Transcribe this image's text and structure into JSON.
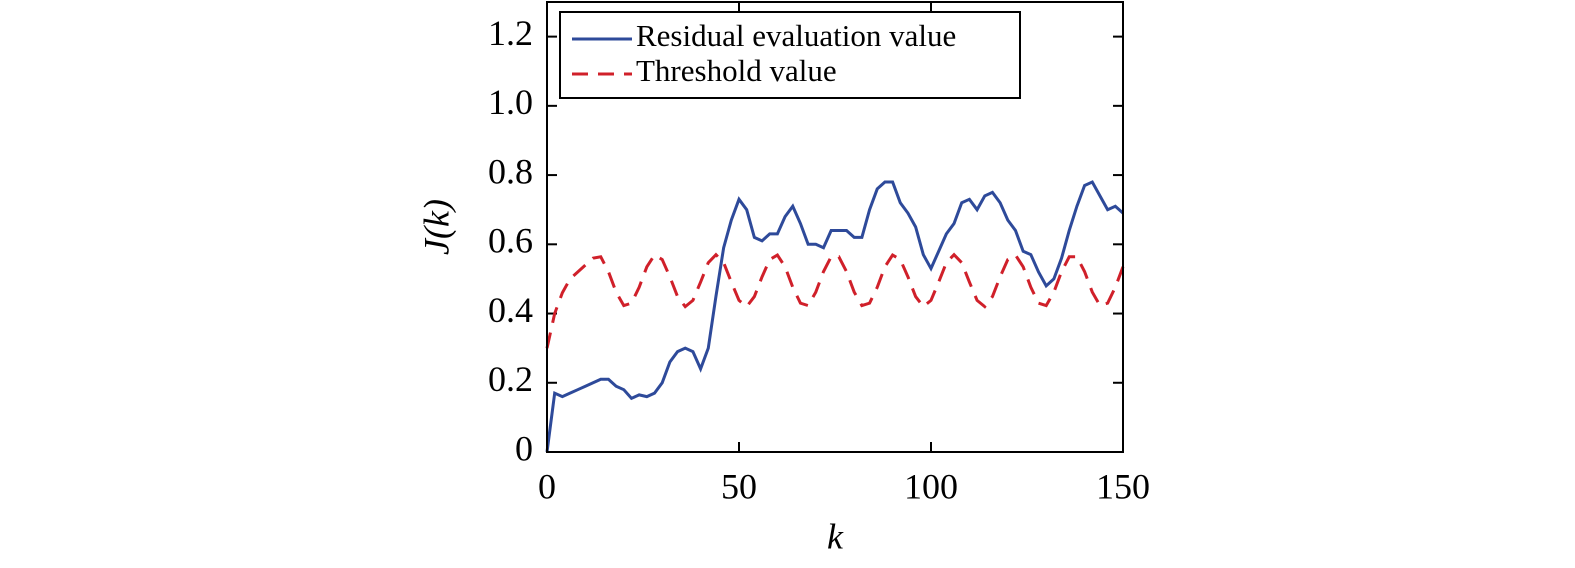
{
  "chart_data": {
    "type": "line",
    "xlabel": "k",
    "ylabel": "J(k)",
    "xlim": [
      0,
      150
    ],
    "ylim": [
      0,
      1.3
    ],
    "xticks": [
      0,
      50,
      100,
      150
    ],
    "yticks": [
      0,
      0.2,
      0.4,
      0.6,
      0.8,
      {
        "value": 1.0,
        "label": "1.0"
      },
      1.2
    ],
    "legend": "upper left",
    "grid": false,
    "x": [
      0,
      2,
      4,
      6,
      8,
      10,
      12,
      14,
      16,
      18,
      20,
      22,
      24,
      26,
      28,
      30,
      32,
      34,
      36,
      38,
      40,
      42,
      44,
      46,
      48,
      50,
      52,
      54,
      56,
      58,
      60,
      62,
      64,
      66,
      68,
      70,
      72,
      74,
      76,
      78,
      80,
      82,
      84,
      86,
      88,
      90,
      92,
      94,
      96,
      98,
      100,
      102,
      104,
      106,
      108,
      110,
      112,
      114,
      116,
      118,
      120,
      122,
      124,
      126,
      128,
      130,
      132,
      134,
      136,
      138,
      140,
      142,
      144,
      146,
      148,
      150
    ],
    "series": [
      {
        "name": "Residual evaluation value",
        "color": "#2e4a9a",
        "dash": false,
        "values": [
          0,
          0.17,
          0.16,
          0.17,
          0.18,
          0.19,
          0.2,
          0.21,
          0.21,
          0.19,
          0.18,
          0.155,
          0.165,
          0.16,
          0.17,
          0.2,
          0.26,
          0.29,
          0.3,
          0.29,
          0.24,
          0.3,
          0.45,
          0.59,
          0.67,
          0.73,
          0.7,
          0.62,
          0.61,
          0.63,
          0.63,
          0.68,
          0.71,
          0.66,
          0.6,
          0.6,
          0.59,
          0.64,
          0.64,
          0.64,
          0.62,
          0.62,
          0.7,
          0.76,
          0.78,
          0.78,
          0.72,
          0.69,
          0.65,
          0.57,
          0.53,
          0.58,
          0.63,
          0.66,
          0.72,
          0.73,
          0.7,
          0.74,
          0.75,
          0.72,
          0.67,
          0.64,
          0.58,
          0.57,
          0.52,
          0.48,
          0.5,
          0.56,
          0.64,
          0.71,
          0.77,
          0.78,
          0.74,
          0.7,
          0.71,
          0.69
        ]
      },
      {
        "name": "Threshold value",
        "color": "#d0202a",
        "dash": true,
        "values": [
          0.3,
          0.4,
          0.46,
          0.5,
          0.52,
          0.54,
          0.56,
          0.564,
          0.521,
          0.462,
          0.423,
          0.43,
          0.476,
          0.535,
          0.569,
          0.556,
          0.506,
          0.449,
          0.42,
          0.438,
          0.491,
          0.547,
          0.57,
          0.547,
          0.491,
          0.438,
          0.42,
          0.449,
          0.506,
          0.556,
          0.569,
          0.535,
          0.476,
          0.43,
          0.423,
          0.462,
          0.521,
          0.564,
          0.564,
          0.521,
          0.462,
          0.423,
          0.43,
          0.476,
          0.535,
          0.569,
          0.556,
          0.506,
          0.449,
          0.42,
          0.438,
          0.491,
          0.547,
          0.57,
          0.547,
          0.491,
          0.438,
          0.42,
          0.449,
          0.506,
          0.556,
          0.569,
          0.535,
          0.476,
          0.43,
          0.423,
          0.462,
          0.521,
          0.564,
          0.564,
          0.521,
          0.462,
          0.423,
          0.43,
          0.476,
          0.535
        ]
      }
    ]
  }
}
